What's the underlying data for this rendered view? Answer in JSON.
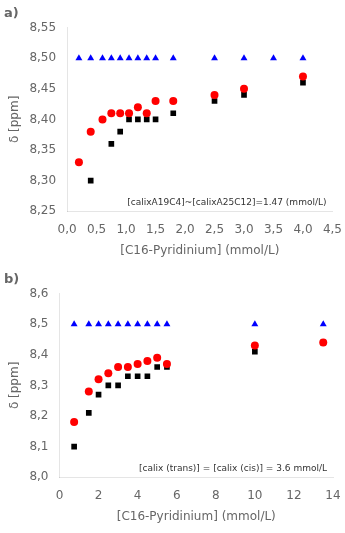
{
  "chart_data": [
    {
      "type": "scatter",
      "title": "a)",
      "x_label": "[C16-Pyridinium] (mmol/L)",
      "y_label": "δ [ppm]",
      "xlim": [
        0,
        4.5
      ],
      "xticks": [
        {
          "value": 0.0,
          "label": "0,0"
        },
        {
          "value": 0.5,
          "label": "0,5"
        },
        {
          "value": 1.0,
          "label": "1,0"
        },
        {
          "value": 1.5,
          "label": "1,5"
        },
        {
          "value": 2.0,
          "label": "2,0"
        },
        {
          "value": 2.5,
          "label": "2,5"
        },
        {
          "value": 3.0,
          "label": "3,0"
        },
        {
          "value": 3.5,
          "label": "3,5"
        },
        {
          "value": 4.0,
          "label": "4,0"
        },
        {
          "value": 4.5,
          "label": "4,5"
        }
      ],
      "ylim": [
        8.25,
        8.55
      ],
      "yticks": [
        {
          "value": 8.25,
          "label": "8,25"
        },
        {
          "value": 8.3,
          "label": "8,30"
        },
        {
          "value": 8.35,
          "label": "8,35"
        },
        {
          "value": 8.4,
          "label": "8,40"
        },
        {
          "value": 8.45,
          "label": "8,45"
        },
        {
          "value": 8.5,
          "label": "8,50"
        },
        {
          "value": 8.55,
          "label": "8,55"
        }
      ],
      "grid": false,
      "annotations": [
        "[calixA19C4]~[calixA25C12]=1.47 (mmol/L)"
      ],
      "series": [
        {
          "color": "#0000FF",
          "marker": "triangle",
          "x": [
            0.2,
            0.4,
            0.6,
            0.75,
            0.9,
            1.05,
            1.2,
            1.35,
            1.5,
            1.8,
            2.5,
            3.0,
            3.5,
            4.0
          ],
          "values": [
            8.5,
            8.5,
            8.5,
            8.5,
            8.5,
            8.5,
            8.5,
            8.5,
            8.5,
            8.5,
            8.5,
            8.5,
            8.5,
            8.5
          ]
        },
        {
          "color": "#FF0000",
          "marker": "circle",
          "x": [
            0.2,
            0.4,
            0.6,
            0.75,
            0.9,
            1.05,
            1.2,
            1.35,
            1.5,
            1.8,
            2.5,
            3.0,
            4.0
          ],
          "values": [
            8.33,
            8.38,
            8.4,
            8.41,
            8.41,
            8.41,
            8.42,
            8.41,
            8.43,
            8.43,
            8.44,
            8.45,
            8.47
          ]
        },
        {
          "color": "#000000",
          "marker": "square",
          "x": [
            0.4,
            0.75,
            0.9,
            1.05,
            1.2,
            1.35,
            1.5,
            1.8,
            2.5,
            3.0,
            4.0
          ],
          "values": [
            8.3,
            8.36,
            8.38,
            8.4,
            8.4,
            8.4,
            8.4,
            8.41,
            8.43,
            8.44,
            8.46
          ]
        }
      ]
    },
    {
      "type": "scatter",
      "title": "b)",
      "x_label": "[C16-Pyridinium] (mmol/L)",
      "y_label": "δ [ppm]",
      "xlim": [
        0,
        14
      ],
      "xticks": [
        0,
        2,
        4,
        6,
        8,
        10,
        12,
        14
      ],
      "ylim": [
        8.0,
        8.6
      ],
      "yticks": [
        {
          "value": 8.0,
          "label": "8,0"
        },
        {
          "value": 8.1,
          "label": "8,1"
        },
        {
          "value": 8.2,
          "label": "8,2"
        },
        {
          "value": 8.3,
          "label": "8,3"
        },
        {
          "value": 8.4,
          "label": "8,4"
        },
        {
          "value": 8.5,
          "label": "8,5"
        },
        {
          "value": 8.6,
          "label": "8,6"
        }
      ],
      "grid": false,
      "annotations": [
        "[calix (trans)] = [calix (cis)] = 3.6 mmol/L"
      ],
      "series": [
        {
          "color": "#0000FF",
          "marker": "triangle",
          "x": [
            0.75,
            1.5,
            2.0,
            2.5,
            3.0,
            3.5,
            4.0,
            4.5,
            5.0,
            5.5,
            10.0,
            13.5
          ],
          "values": [
            8.5,
            8.5,
            8.5,
            8.5,
            8.5,
            8.5,
            8.5,
            8.5,
            8.5,
            8.5,
            8.5,
            8.5
          ]
        },
        {
          "color": "#FF0000",
          "marker": "circle",
          "x": [
            0.75,
            1.5,
            2.0,
            2.5,
            3.0,
            3.5,
            4.0,
            4.5,
            5.0,
            5.5,
            10.0,
            13.5
          ],
          "values": [
            8.18,
            8.28,
            8.32,
            8.34,
            8.36,
            8.36,
            8.37,
            8.38,
            8.39,
            8.37,
            8.43,
            8.44
          ]
        },
        {
          "color": "#000000",
          "marker": "square",
          "x": [
            0.75,
            1.5,
            2.0,
            2.5,
            3.0,
            3.5,
            4.0,
            4.5,
            5.0,
            5.5,
            10.0,
            13.5
          ],
          "values": [
            8.1,
            8.21,
            8.27,
            8.3,
            8.3,
            8.33,
            8.33,
            8.33,
            8.36,
            8.36,
            8.41,
            8.44
          ]
        }
      ]
    }
  ]
}
